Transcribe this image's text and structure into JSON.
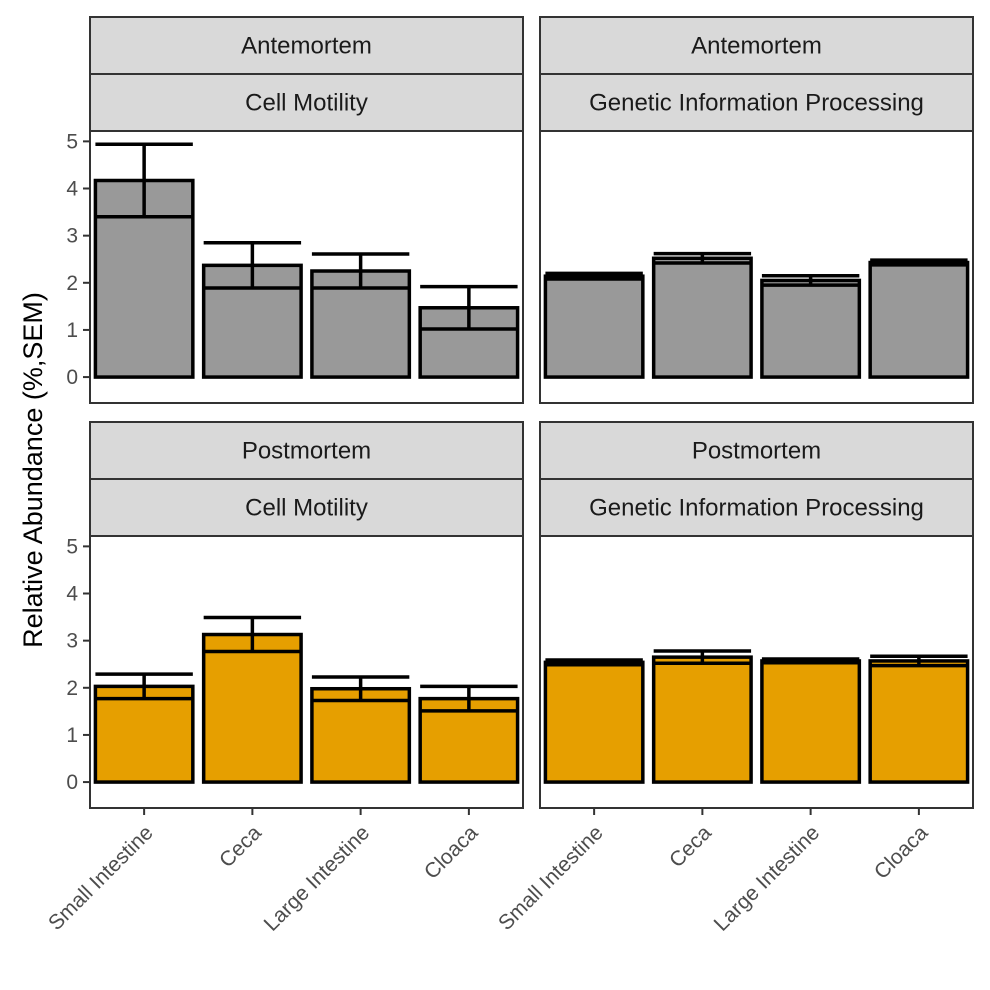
{
  "chart_data": {
    "type": "bar",
    "ylabel": "Relative Abundance (%,SEM)",
    "xlabel": "",
    "ylim": [
      0,
      5
    ],
    "yticks": [
      0,
      1,
      2,
      3,
      4,
      5
    ],
    "categories": [
      "Small Intestine",
      "Ceca",
      "Large Intestine",
      "Cloaca"
    ],
    "colors": {
      "Antemortem": "#999999",
      "Postmortem": "#E69F00"
    },
    "panels": [
      {
        "row_strip": "Antemortem",
        "col_strip": "Cell Motility",
        "values": [
          4.17,
          2.37,
          2.25,
          1.47
        ],
        "errors": [
          0.77,
          0.48,
          0.36,
          0.45
        ]
      },
      {
        "row_strip": "Antemortem",
        "col_strip": "Genetic Information Processing",
        "values": [
          2.14,
          2.52,
          2.05,
          2.43
        ],
        "errors": [
          0.06,
          0.1,
          0.1,
          0.05
        ]
      },
      {
        "row_strip": "Postmortem",
        "col_strip": "Cell Motility",
        "values": [
          2.03,
          3.13,
          1.98,
          1.77
        ],
        "errors": [
          0.26,
          0.36,
          0.25,
          0.26
        ]
      },
      {
        "row_strip": "Postmortem",
        "col_strip": "Genetic Information Processing",
        "values": [
          2.54,
          2.65,
          2.57,
          2.57
        ],
        "errors": [
          0.05,
          0.13,
          0.04,
          0.1
        ]
      }
    ]
  }
}
